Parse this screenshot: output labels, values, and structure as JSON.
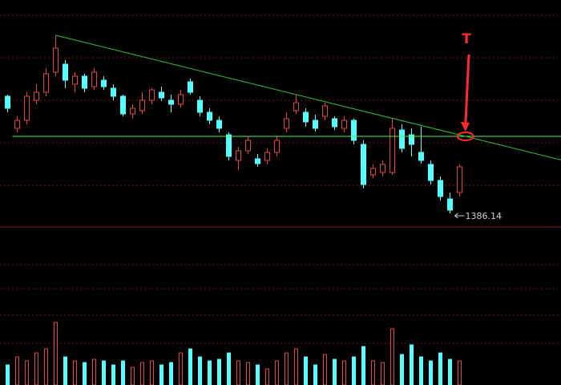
{
  "chart_data": {
    "type": "candlestick",
    "annotation": "T",
    "open": [
      1459.14,
      1439.14,
      1444.14,
      1456.64,
      1461.64,
      1474.14,
      1479.14,
      1466.64,
      1471.64,
      1465.14,
      1469.14,
      1464.14,
      1459.14,
      1448.14,
      1450.14,
      1456.64,
      1461.64,
      1456.64,
      1454.14,
      1468.14,
      1456.64,
      1449.14,
      1444.14,
      1435.14,
      1419.14,
      1425.14,
      1420.14,
      1419.14,
      1424.14,
      1439.14,
      1450.14,
      1449.14,
      1444.14,
      1446.64,
      1445.14,
      1439.14,
      1444.14,
      1429.14,
      1410.14,
      1411.64,
      1411.64,
      1438.14,
      1435.14,
      1424.14,
      1416.64,
      1406.64,
      1395.14,
      1399.14
    ],
    "high": [
      1460.14,
      1446.64,
      1461.64,
      1466.64,
      1476.64,
      1497.14,
      1481.64,
      1474.14,
      1473.14,
      1476.64,
      1471.64,
      1466.64,
      1460.14,
      1454.14,
      1461.64,
      1464.14,
      1465.14,
      1460.14,
      1463.14,
      1470.14,
      1459.14,
      1451.64,
      1446.64,
      1436.64,
      1427.64,
      1434.14,
      1423.14,
      1426.64,
      1434.14,
      1449.14,
      1460.14,
      1451.64,
      1447.64,
      1455.14,
      1446.64,
      1446.64,
      1445.14,
      1431.64,
      1416.64,
      1419.14,
      1445.14,
      1441.64,
      1439.14,
      1440.14,
      1419.14,
      1409.14,
      1399.14,
      1416.64
    ],
    "low": [
      1449.14,
      1436.64,
      1441.64,
      1454.14,
      1459.14,
      1471.64,
      1464.14,
      1461.64,
      1461.64,
      1463.14,
      1463.14,
      1456.64,
      1446.64,
      1445.14,
      1448.14,
      1454.14,
      1456.14,
      1449.14,
      1452.14,
      1460.14,
      1446.64,
      1441.64,
      1436.64,
      1419.14,
      1413.14,
      1423.14,
      1415.14,
      1416.64,
      1421.64,
      1436.64,
      1448.14,
      1440.14,
      1437.14,
      1444.14,
      1438.14,
      1436.64,
      1429.14,
      1401.64,
      1408.14,
      1409.14,
      1410.14,
      1424.14,
      1421.64,
      1417.14,
      1404.14,
      1394.14,
      1386.14,
      1396.64
    ],
    "close": [
      1451.64,
      1444.14,
      1459.14,
      1461.64,
      1473.14,
      1489.14,
      1469.14,
      1471.64,
      1464.14,
      1474.14,
      1465.14,
      1459.14,
      1448.14,
      1451.64,
      1456.64,
      1463.14,
      1458.14,
      1454.14,
      1460.14,
      1461.64,
      1449.14,
      1444.14,
      1439.14,
      1421.64,
      1425.14,
      1431.64,
      1417.14,
      1424.14,
      1431.64,
      1445.14,
      1455.14,
      1443.14,
      1439.14,
      1453.14,
      1440.14,
      1444.14,
      1431.64,
      1404.14,
      1414.14,
      1416.64,
      1439.14,
      1426.64,
      1429.14,
      1419.14,
      1406.64,
      1396.64,
      1388.14,
      1415.14
    ],
    "volume": [
      25,
      35,
      30,
      40,
      45,
      78,
      35,
      30,
      28,
      32,
      30,
      25,
      30,
      22,
      28,
      30,
      25,
      28,
      40,
      45,
      35,
      30,
      32,
      40,
      30,
      28,
      25,
      20,
      30,
      40,
      45,
      35,
      25,
      38,
      32,
      30,
      35,
      48,
      30,
      28,
      70,
      38,
      50,
      35,
      30,
      40,
      32,
      30
    ],
    "ylim": [
      1377.64,
      1519.14
    ],
    "volume_ylim": [
      0,
      100
    ],
    "low_label_index": 46,
    "support_level": {
      "from": 1,
      "value": 1434.14,
      "color": "#5cf05c"
    },
    "trend_line": {
      "from": [
        5,
        1497.14
      ],
      "to": [
        47,
        1435.04
      ],
      "color": "#2fc42f"
    },
    "up_color": "#e8463c",
    "down_color": "#54ffff",
    "annotation_color": "#ff2a2a"
  }
}
